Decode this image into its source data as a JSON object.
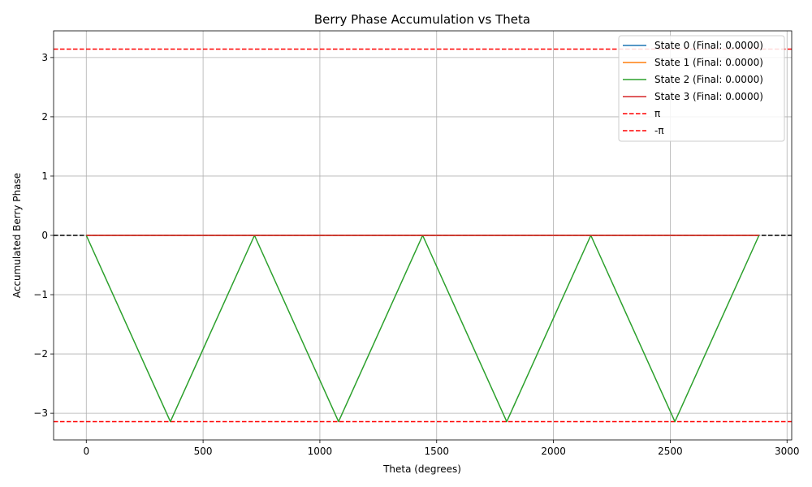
{
  "chart_data": {
    "type": "line",
    "title": "Berry Phase Accumulation vs Theta",
    "xlabel": "Theta (degrees)",
    "ylabel": "Accumulated Berry Phase",
    "xlim": [
      -140,
      3020
    ],
    "ylim": [
      -3.45,
      3.45
    ],
    "xticks": [
      0,
      500,
      1000,
      1500,
      2000,
      2500,
      3000
    ],
    "yticks": [
      -3,
      -2,
      -1,
      0,
      1,
      2,
      3
    ],
    "grid": true,
    "legend_position": "top-right",
    "series": [
      {
        "name": "State 0 (Final: 0.0000)",
        "color": "#1f77b4",
        "style": "solid",
        "x": [
          0,
          2880
        ],
        "y": [
          0,
          0
        ]
      },
      {
        "name": "State 1 (Final: 0.0000)",
        "color": "#ff7f0e",
        "style": "solid",
        "x": [
          0,
          2880
        ],
        "y": [
          0,
          0
        ]
      },
      {
        "name": "State 2 (Final: 0.0000)",
        "color": "#2ca02c",
        "style": "solid",
        "x": [
          0,
          360,
          720,
          1080,
          1440,
          1800,
          2160,
          2520,
          2880
        ],
        "y": [
          0,
          -3.1416,
          0,
          -3.1416,
          0,
          -3.1416,
          0,
          -3.1416,
          0
        ]
      },
      {
        "name": "State 3 (Final: 0.0000)",
        "color": "#d62728",
        "style": "solid",
        "x": [
          0,
          2880
        ],
        "y": [
          0,
          0
        ]
      }
    ],
    "reference_lines": [
      {
        "name": "π",
        "y": 3.1416,
        "color": "#ff0000",
        "style": "dashed",
        "in_legend": true
      },
      {
        "name": "-π",
        "y": -3.1416,
        "color": "#ff0000",
        "style": "dashed",
        "in_legend": true
      },
      {
        "name": "",
        "y": 0,
        "color": "#000000",
        "style": "dashed",
        "in_legend": false
      }
    ]
  }
}
